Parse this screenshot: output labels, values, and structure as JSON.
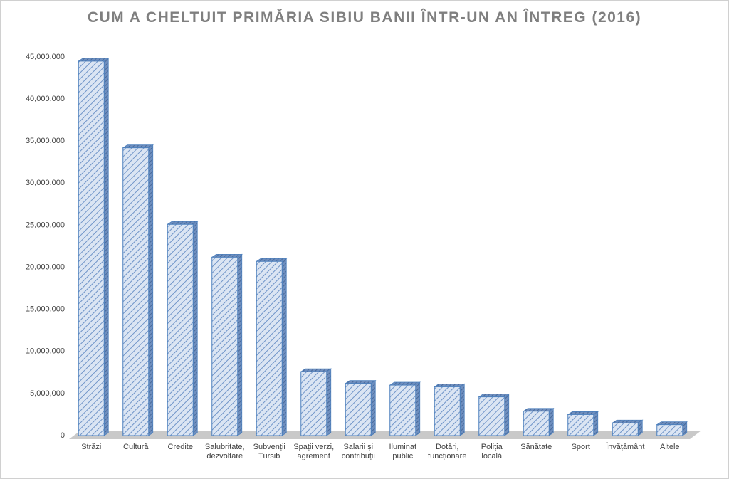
{
  "chart_data": {
    "type": "bar3d",
    "title": "CUM A CHELTUIT PRIMĂRIA SIBIU BANII ÎNTR-UN AN ÎNTREG (2016)",
    "categories": [
      "Străzi",
      "Cultură",
      "Credite",
      "Salubritate,\ndezvoltare",
      "Subvenții\nTursib",
      "Spații verzi,\nagrement",
      "Salarii și\ncontribuții",
      "Iluminat\npublic",
      "Dotări,\nfuncționare",
      "Poliția\nlocală",
      "Sănătate",
      "Sport",
      "Învățământ",
      "Altele"
    ],
    "values": [
      44500000,
      34200000,
      25100000,
      21200000,
      20700000,
      7600000,
      6200000,
      6000000,
      5800000,
      4600000,
      2900000,
      2500000,
      1500000,
      1300000
    ],
    "color": "#4f81bd",
    "ylim": [
      0,
      45000000
    ],
    "yticks": [
      0,
      {
        "value": 5000000,
        "label": "5,000,000"
      },
      {
        "value": 10000000,
        "label": "10,000,000"
      },
      {
        "value": 15000000,
        "label": "15,000,000"
      },
      {
        "value": 20000000,
        "label": "20,000,000"
      },
      {
        "value": 25000000,
        "label": "25,000,000"
      },
      {
        "value": 30000000,
        "label": "30,000,000"
      },
      {
        "value": 35000000,
        "label": "35,000,000"
      },
      {
        "value": 40000000,
        "label": "40,000,000"
      },
      {
        "value": 45000000,
        "label": "45,000,000"
      }
    ],
    "grid": false
  }
}
